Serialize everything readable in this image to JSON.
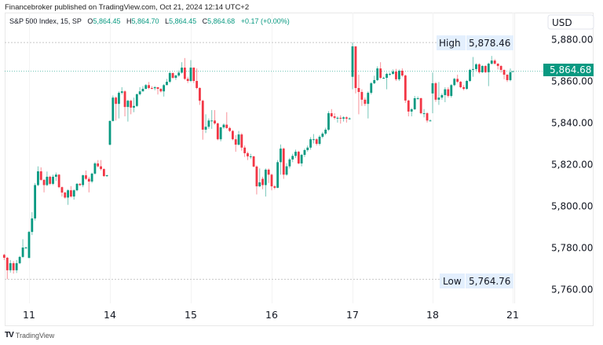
{
  "header": {
    "published": "Financebroker published on TradingView.com, Oct 21, 2024 12:14 UTC+2"
  },
  "legend": {
    "symbol": "S&P 500 Index, 15, SP",
    "o_label": "O",
    "o_value": "5,864.45",
    "h_label": "H",
    "h_value": "5,864.70",
    "l_label": "L",
    "l_value": "5,864.45",
    "c_label": "C",
    "c_value": "5,864.68",
    "change": "+0.17 (+0.00%)"
  },
  "price_axis": {
    "currency": "USD",
    "high_label": "High",
    "high_value": "5,878.46",
    "low_label": "Low",
    "low_value": "5,764.76",
    "last_value": "5,864.68"
  },
  "footer": {
    "brand": "TradingView"
  },
  "colors": {
    "up": "#089981",
    "down": "#f23645",
    "high_low_bg": "#e3effd",
    "last_price_bg": "#089981"
  },
  "chart_data": {
    "type": "candlestick",
    "interval": "15",
    "ylim": [
      5757,
      5884
    ],
    "y_ticks": [
      "5,880.00",
      "5,860.00",
      "5,840.00",
      "5,820.00",
      "5,800.00",
      "5,780.00",
      "5,760.00"
    ],
    "y_tick_values": [
      5880,
      5860,
      5840,
      5820,
      5800,
      5780,
      5760
    ],
    "x_ticks": [
      "11",
      "14",
      "15",
      "16",
      "17",
      "18",
      "21"
    ],
    "high": 5878.46,
    "low": 5764.76,
    "last": 5864.68,
    "grid": "vertical only",
    "days": [
      {
        "label": "",
        "bars": [
          [
            5776.5,
            5777,
            5774,
            5775.1
          ],
          [
            5775.1,
            5775.5,
            5764.8,
            5769.1
          ],
          [
            5769.1,
            5774,
            5768,
            5772.5
          ],
          [
            5772.5,
            5773.5,
            5767.5,
            5769.1
          ],
          [
            5769.1,
            5774,
            5767.8,
            5772.5
          ],
          [
            5772.5,
            5776,
            5772,
            5775.5
          ],
          [
            5775.5,
            5784,
            5775,
            5780
          ],
          [
            5780,
            5780.5,
            5779.5,
            5780
          ]
        ]
      },
      {
        "label": "11",
        "bars": [
          [
            5775,
            5788,
            5775,
            5787.5
          ],
          [
            5787.5,
            5797,
            5786,
            5794
          ],
          [
            5794,
            5811,
            5793,
            5810
          ],
          [
            5810,
            5819,
            5809.5,
            5816.6
          ],
          [
            5816.6,
            5818.5,
            5812,
            5812.5
          ],
          [
            5812.5,
            5812.8,
            5806.5,
            5810
          ],
          [
            5810,
            5816.5,
            5809.5,
            5814
          ],
          [
            5814,
            5814.5,
            5810,
            5810.6
          ],
          [
            5810.6,
            5815,
            5810,
            5814
          ],
          [
            5814,
            5816,
            5812,
            5815
          ],
          [
            5815,
            5815.3,
            5808.5,
            5809
          ],
          [
            5809,
            5809.3,
            5804.5,
            5806.4
          ],
          [
            5806.4,
            5806.8,
            5803.5,
            5804
          ],
          [
            5804,
            5808,
            5800.5,
            5807.5
          ],
          [
            5807.5,
            5809.5,
            5804,
            5804.5
          ],
          [
            5804.5,
            5808,
            5803,
            5807.5
          ],
          [
            5807.5,
            5811,
            5807,
            5810.6
          ],
          [
            5810.6,
            5811,
            5809.5,
            5810
          ],
          [
            5810,
            5815,
            5809,
            5814.7
          ],
          [
            5814.7,
            5817,
            5812.5,
            5813
          ],
          [
            5813,
            5814,
            5806.5,
            5811.7
          ],
          [
            5811.7,
            5816,
            5811,
            5815.5
          ],
          [
            5815.5,
            5821,
            5815,
            5820.4
          ],
          [
            5820.4,
            5822,
            5818.5,
            5819
          ],
          [
            5819,
            5822,
            5817,
            5817.7
          ],
          [
            5817.7,
            5818,
            5814,
            5814.3
          ],
          [
            5814.3,
            5815,
            5814,
            5814.7
          ]
        ]
      },
      {
        "label": "14",
        "bars": [
          [
            5829.4,
            5841,
            5829,
            5840.8
          ],
          [
            5840.8,
            5853,
            5840.5,
            5852
          ],
          [
            5852,
            5852.5,
            5841,
            5849
          ],
          [
            5849,
            5855,
            5842,
            5854.3
          ],
          [
            5854.3,
            5857,
            5853.5,
            5855
          ],
          [
            5855,
            5855.5,
            5843,
            5847.5
          ],
          [
            5847.5,
            5851,
            5840.5,
            5850.5
          ],
          [
            5850.5,
            5851,
            5844,
            5847.2
          ],
          [
            5847.2,
            5852,
            5845,
            5848
          ],
          [
            5848,
            5854,
            5847.5,
            5853.6
          ],
          [
            5853.6,
            5857,
            5853,
            5855
          ],
          [
            5855,
            5857.5,
            5855,
            5856.2
          ],
          [
            5856.2,
            5858.5,
            5856,
            5858
          ],
          [
            5858,
            5859.5,
            5856,
            5856.6
          ],
          [
            5856.6,
            5857.5,
            5856,
            5856.5
          ],
          [
            5856.5,
            5857.5,
            5855.5,
            5857
          ],
          [
            5857,
            5857,
            5853.5,
            5856.2
          ],
          [
            5856.2,
            5856.5,
            5854.5,
            5855
          ],
          [
            5855,
            5858.5,
            5852.5,
            5858
          ],
          [
            5858,
            5861,
            5858,
            5859.6
          ],
          [
            5859.6,
            5864.5,
            5859,
            5863.8
          ],
          [
            5863.8,
            5864,
            5861,
            5861.5
          ],
          [
            5861.5,
            5863,
            5860.5,
            5862.6
          ],
          [
            5862.6,
            5865,
            5862,
            5864
          ],
          [
            5864,
            5869,
            5863.5,
            5866.4
          ],
          [
            5866.4,
            5871,
            5860.5,
            5861
          ],
          [
            5861,
            5862,
            5859,
            5860
          ]
        ]
      },
      {
        "label": "15",
        "bars": [
          [
            5860,
            5870,
            5859.5,
            5866.4
          ],
          [
            5866.4,
            5866.5,
            5859,
            5860
          ],
          [
            5860,
            5866,
            5856,
            5856.6
          ],
          [
            5856.6,
            5857,
            5848.5,
            5850.5
          ],
          [
            5850.5,
            5851,
            5831.8,
            5836.6
          ],
          [
            5836.6,
            5844,
            5835,
            5838
          ],
          [
            5838,
            5842,
            5837,
            5841
          ],
          [
            5841,
            5846,
            5837,
            5841
          ],
          [
            5841,
            5846,
            5839,
            5839.6
          ],
          [
            5839.6,
            5840,
            5831.5,
            5832
          ],
          [
            5832,
            5838,
            5831,
            5837.7
          ],
          [
            5837.7,
            5839.6,
            5837,
            5839
          ],
          [
            5839,
            5845,
            5837,
            5837.4
          ],
          [
            5837.4,
            5838,
            5835.5,
            5836
          ],
          [
            5836,
            5836.4,
            5831.5,
            5832
          ],
          [
            5832,
            5834,
            5826,
            5829.4
          ],
          [
            5829.4,
            5836,
            5829,
            5834.3
          ],
          [
            5834.3,
            5835,
            5826.5,
            5828
          ],
          [
            5828,
            5829,
            5823.5,
            5825.3
          ],
          [
            5825.3,
            5826,
            5822,
            5823.8
          ],
          [
            5823.8,
            5825,
            5822.5,
            5823.8
          ],
          [
            5823.8,
            5824,
            5818.5,
            5818.9
          ],
          [
            5818.9,
            5819.5,
            5805.5,
            5809.4
          ],
          [
            5809.4,
            5818,
            5809,
            5811.3
          ],
          [
            5813,
            5814,
            5808,
            5810
          ],
          [
            5810,
            5818,
            5804.5,
            5817.4
          ],
          [
            5817.4,
            5818,
            5811,
            5815
          ]
        ]
      },
      {
        "label": "16",
        "bars": [
          [
            5815,
            5815.5,
            5807.5,
            5809.4
          ],
          [
            5809.4,
            5810,
            5808,
            5808.7
          ],
          [
            5808.7,
            5822,
            5808.5,
            5821
          ],
          [
            5821,
            5829.5,
            5815,
            5827.5
          ],
          [
            5827.5,
            5828,
            5813,
            5815
          ],
          [
            5815,
            5820.5,
            5814.5,
            5819
          ],
          [
            5819,
            5823,
            5818,
            5822.3
          ],
          [
            5822.3,
            5825,
            5821,
            5824
          ],
          [
            5824,
            5827,
            5823,
            5826
          ],
          [
            5826,
            5826.5,
            5820,
            5820.4
          ],
          [
            5820.4,
            5825,
            5819,
            5824.5
          ],
          [
            5824.5,
            5827.5,
            5823.5,
            5826.8
          ],
          [
            5826.8,
            5829,
            5826,
            5828
          ],
          [
            5828,
            5833,
            5827,
            5832
          ],
          [
            5832,
            5834.5,
            5830,
            5832
          ],
          [
            5832,
            5832.5,
            5829,
            5829.8
          ],
          [
            5829.8,
            5834,
            5829,
            5833.2
          ],
          [
            5833.2,
            5835.5,
            5832.5,
            5834.7
          ],
          [
            5834.7,
            5837.5,
            5834,
            5836.6
          ],
          [
            5836.6,
            5845.5,
            5836,
            5844.5
          ],
          [
            5844.5,
            5846.5,
            5842.5,
            5843
          ],
          [
            5843,
            5844.5,
            5841.5,
            5842.3
          ],
          [
            5842.3,
            5843,
            5840,
            5842.3
          ],
          [
            5842.3,
            5843.5,
            5839.5,
            5841.9
          ],
          [
            5841.9,
            5843,
            5840.5,
            5842.5
          ],
          [
            5842.5,
            5843,
            5840,
            5841.9
          ],
          [
            5841.9,
            5842.5,
            5841.5,
            5842
          ]
        ]
      },
      {
        "label": "17",
        "bars": [
          [
            5862,
            5878.46,
            5856,
            5876.6
          ],
          [
            5876.6,
            5864.5,
            5854,
            5856.6
          ],
          [
            5856.6,
            5863,
            5844,
            5854.7
          ],
          [
            5854.7,
            5856,
            5848,
            5851
          ],
          [
            5851,
            5852,
            5848,
            5849
          ],
          [
            5849,
            5855,
            5842,
            5854.3
          ],
          [
            5854.3,
            5859.5,
            5853.5,
            5858.9
          ],
          [
            5858.9,
            5862.5,
            5858.5,
            5860.4
          ],
          [
            5860.4,
            5867,
            5860,
            5866
          ],
          [
            5866,
            5869,
            5861,
            5861.5
          ],
          [
            5861.5,
            5862,
            5861,
            5861.5
          ],
          [
            5861.5,
            5864,
            5856,
            5863.4
          ],
          [
            5863.4,
            5864,
            5862.5,
            5863.4
          ],
          [
            5863.4,
            5865.5,
            5863,
            5864.5
          ],
          [
            5864.5,
            5865.8,
            5860,
            5860.8
          ],
          [
            5860.8,
            5865.5,
            5860,
            5864.9
          ],
          [
            5864.9,
            5866,
            5862,
            5862.6
          ],
          [
            5862.6,
            5863,
            5849.5,
            5850.6
          ],
          [
            5850.6,
            5851,
            5843,
            5845.3
          ],
          [
            5845.3,
            5847,
            5843,
            5846.4
          ],
          [
            5846.4,
            5852.8,
            5846,
            5851.7
          ],
          [
            5851.7,
            5852.5,
            5851,
            5851.7
          ],
          [
            5851.7,
            5852,
            5844,
            5844.5
          ],
          [
            5844.5,
            5846.5,
            5842.5,
            5844.5
          ],
          [
            5844.5,
            5845,
            5840,
            5841
          ],
          [
            5841,
            5841.5,
            5840.8,
            5841
          ]
        ]
      },
      {
        "label": "18",
        "bars": [
          [
            5854,
            5864,
            5844.5,
            5858.9
          ],
          [
            5858.9,
            5859.5,
            5850,
            5851
          ],
          [
            5851,
            5859.5,
            5848.5,
            5852
          ],
          [
            5852,
            5854,
            5851,
            5853.2
          ],
          [
            5853.2,
            5857,
            5849.8,
            5856
          ],
          [
            5856,
            5857,
            5852,
            5852.8
          ],
          [
            5852.8,
            5858.5,
            5852,
            5858
          ],
          [
            5858,
            5861.5,
            5857.5,
            5861
          ],
          [
            5861,
            5863,
            5859,
            5859.6
          ],
          [
            5859.6,
            5860,
            5856.5,
            5857
          ],
          [
            5857,
            5858,
            5855.5,
            5856.2
          ],
          [
            5856.2,
            5860.5,
            5855.8,
            5860
          ],
          [
            5860,
            5865.8,
            5859.5,
            5865.3
          ],
          [
            5865.3,
            5871.5,
            5862,
            5865.7
          ],
          [
            5865.7,
            5868.5,
            5864.8,
            5868
          ],
          [
            5868,
            5868.5,
            5863.5,
            5864.2
          ],
          [
            5864.2,
            5867.5,
            5863.8,
            5867.2
          ],
          [
            5867.2,
            5867.5,
            5863.8,
            5864.2
          ],
          [
            5864.2,
            5868.8,
            5857.5,
            5868.3
          ],
          [
            5868.3,
            5872,
            5867.8,
            5869.8
          ],
          [
            5869.8,
            5870.5,
            5867.8,
            5868.3
          ],
          [
            5868.3,
            5868.5,
            5865.5,
            5867.2
          ],
          [
            5867.2,
            5867.5,
            5864,
            5865.3
          ],
          [
            5865.3,
            5865.5,
            5860.8,
            5863
          ],
          [
            5863,
            5863.2,
            5859.5,
            5860.4
          ],
          [
            5860.4,
            5866,
            5859.8,
            5864.2
          ]
        ]
      },
      {
        "label": "21",
        "bars": [
          [
            5864.45,
            5864.7,
            5864.45,
            5864.68
          ]
        ]
      }
    ]
  }
}
